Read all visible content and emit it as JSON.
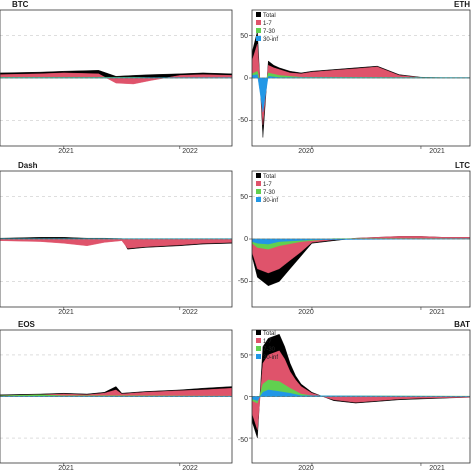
{
  "colors": {
    "Total": "#000000",
    "1-7": "#df536b",
    "7-30": "#61d04f",
    "30-inf": "#2297e6"
  },
  "chart_data": [
    {
      "type": "area",
      "title": "BTC",
      "ylim": [
        -80,
        80
      ],
      "y_ticks": [],
      "x_ticks": [
        {
          "label": "2021",
          "x": 2021.0
        },
        {
          "label": "2022",
          "x": 2022.0
        }
      ],
      "xlim": [
        2020.45,
        2022.45
      ],
      "legend": null,
      "series": [
        {
          "name": "Total",
          "x": [
            2020.45,
            2020.8,
            2021.0,
            2021.3,
            2021.45,
            2021.6,
            2021.75,
            2022.0,
            2022.2,
            2022.45
          ],
          "y": [
            6,
            7,
            8,
            9,
            2,
            3,
            4,
            5,
            6,
            5
          ]
        },
        {
          "name": "1-7",
          "x": [
            2020.45,
            2020.8,
            2021.0,
            2021.3,
            2021.45,
            2021.6,
            2021.75,
            2022.0,
            2022.2,
            2022.45
          ],
          "y": [
            4,
            5,
            6,
            5,
            -6,
            -7,
            -3,
            3,
            4,
            3
          ]
        },
        {
          "name": "7-30",
          "x": [
            2020.45,
            2020.8,
            2021.0,
            2021.3,
            2021.45,
            2021.6,
            2021.75,
            2022.0,
            2022.2,
            2022.45
          ],
          "y": [
            1,
            1,
            1,
            1,
            1,
            1,
            0.5,
            0.5,
            0.5,
            0.5
          ]
        },
        {
          "name": "30-inf",
          "x": [
            2020.45,
            2022.45
          ],
          "y": [
            0.3,
            0.3
          ]
        }
      ]
    },
    {
      "type": "area",
      "title": "ETH",
      "ylim": [
        -80,
        80
      ],
      "y_ticks": [
        {
          "label": "50",
          "v": 50
        },
        {
          "label": "0",
          "v": 0
        },
        {
          "label": "-50",
          "v": -50
        }
      ],
      "x_ticks": [
        {
          "label": "2020",
          "x": 2020.0
        },
        {
          "label": "2021",
          "x": 2021.0
        }
      ],
      "xlim": [
        2019.45,
        2021.45
      ],
      "legend": [
        "Total",
        "1-7",
        "7-30",
        "30-inf"
      ],
      "series": [
        {
          "name": "Total",
          "x": [
            2019.45,
            2019.5,
            2019.55,
            2019.6,
            2019.65,
            2019.7,
            2019.8,
            2019.9,
            2020.0,
            2020.2,
            2020.4,
            2020.6,
            2020.8,
            2021.0,
            2021.2,
            2021.45
          ],
          "y": [
            30,
            55,
            -70,
            20,
            15,
            12,
            8,
            6,
            8,
            10,
            12,
            14,
            4,
            1,
            0.5,
            0.5
          ]
        },
        {
          "name": "1-7",
          "x": [
            2019.45,
            2019.5,
            2019.55,
            2019.6,
            2019.65,
            2019.7,
            2019.8,
            2019.9,
            2020.0,
            2020.2,
            2020.4,
            2020.6,
            2020.8,
            2021.0,
            2021.2,
            2021.45
          ],
          "y": [
            20,
            40,
            -55,
            15,
            12,
            10,
            6,
            5,
            7,
            9,
            11,
            13,
            3,
            0.5,
            0.3,
            0.3
          ]
        },
        {
          "name": "7-30",
          "x": [
            2019.45,
            2019.5,
            2019.55,
            2019.6,
            2019.7,
            2019.9,
            2020.2,
            2021.45
          ],
          "y": [
            5,
            8,
            -15,
            6,
            3,
            1,
            1,
            0.5
          ]
        },
        {
          "name": "30-inf",
          "x": [
            2019.45,
            2019.5,
            2019.55,
            2019.6,
            2019.7,
            2021.45
          ],
          "y": [
            3,
            4,
            -40,
            2,
            0.5,
            0.2
          ]
        }
      ]
    },
    {
      "type": "area",
      "title": "Dash",
      "ylim": [
        -80,
        80
      ],
      "y_ticks": [],
      "x_ticks": [
        {
          "label": "2021",
          "x": 2021.0
        },
        {
          "label": "2022",
          "x": 2022.0
        }
      ],
      "xlim": [
        2020.45,
        2022.45
      ],
      "legend": null,
      "series": [
        {
          "name": "Total",
          "x": [
            2020.45,
            2020.8,
            2021.0,
            2021.2,
            2021.35,
            2021.5,
            2021.55,
            2021.7,
            2022.0,
            2022.2,
            2022.45
          ],
          "y": [
            1,
            2,
            2,
            1,
            1,
            0.5,
            -12,
            -10,
            -8,
            -6,
            -5
          ]
        },
        {
          "name": "1-7",
          "x": [
            2020.45,
            2020.8,
            2021.0,
            2021.2,
            2021.35,
            2021.5,
            2021.55,
            2021.7,
            2022.0,
            2022.2,
            2022.45
          ],
          "y": [
            -2,
            -3,
            -5,
            -8,
            -4,
            -2,
            -11,
            -9,
            -7,
            -5,
            -4
          ]
        },
        {
          "name": "7-30",
          "x": [
            2020.45,
            2022.45
          ],
          "y": [
            0.5,
            0.5
          ]
        },
        {
          "name": "30-inf",
          "x": [
            2020.45,
            2022.45
          ],
          "y": [
            0.3,
            0.3
          ]
        }
      ]
    },
    {
      "type": "area",
      "title": "LTC",
      "ylim": [
        -80,
        80
      ],
      "y_ticks": [
        {
          "label": "50",
          "v": 50
        },
        {
          "label": "0",
          "v": 0
        },
        {
          "label": "-50",
          "v": -50
        }
      ],
      "x_ticks": [
        {
          "label": "2020",
          "x": 2020.0
        },
        {
          "label": "2021",
          "x": 2021.0
        }
      ],
      "xlim": [
        2019.45,
        2021.45
      ],
      "legend": [
        "Total",
        "1-7",
        "7-30",
        "30-inf"
      ],
      "series": [
        {
          "name": "Total",
          "x": [
            2019.45,
            2019.5,
            2019.6,
            2019.7,
            2019.8,
            2019.9,
            2020.0,
            2020.2,
            2020.4,
            2020.6,
            2020.8,
            2021.0,
            2021.2,
            2021.45
          ],
          "y": [
            -20,
            -45,
            -55,
            -50,
            -35,
            -20,
            -5,
            -2,
            1,
            2,
            3,
            3,
            2,
            2
          ]
        },
        {
          "name": "1-7",
          "x": [
            2019.45,
            2019.5,
            2019.6,
            2019.7,
            2019.8,
            2019.9,
            2020.0,
            2020.2,
            2020.4,
            2020.6,
            2020.8,
            2021.0,
            2021.2,
            2021.45
          ],
          "y": [
            -15,
            -35,
            -40,
            -35,
            -25,
            -15,
            -4,
            -1,
            1,
            2,
            3,
            3,
            2,
            2
          ]
        },
        {
          "name": "7-30",
          "x": [
            2019.45,
            2019.5,
            2019.6,
            2019.7,
            2019.9,
            2020.2,
            2021.45
          ],
          "y": [
            -5,
            -10,
            -12,
            -8,
            -3,
            0.5,
            0.5
          ]
        },
        {
          "name": "30-inf",
          "x": [
            2019.45,
            2019.5,
            2019.6,
            2019.7,
            2020.0,
            2021.45
          ],
          "y": [
            -3,
            -5,
            -6,
            -3,
            -1,
            0.2
          ]
        }
      ]
    },
    {
      "type": "area",
      "title": "EOS",
      "ylim": [
        -80,
        80
      ],
      "y_ticks": [],
      "x_ticks": [
        {
          "label": "2021",
          "x": 2021.0
        },
        {
          "label": "2022",
          "x": 2022.0
        }
      ],
      "xlim": [
        2020.45,
        2022.45
      ],
      "legend": null,
      "series": [
        {
          "name": "Total",
          "x": [
            2020.45,
            2020.8,
            2021.0,
            2021.2,
            2021.35,
            2021.45,
            2021.5,
            2021.7,
            2022.0,
            2022.2,
            2022.45
          ],
          "y": [
            2,
            3,
            4,
            3,
            5,
            12,
            4,
            6,
            8,
            10,
            12
          ]
        },
        {
          "name": "1-7",
          "x": [
            2020.45,
            2020.8,
            2021.0,
            2021.2,
            2021.35,
            2021.45,
            2021.5,
            2021.7,
            2022.0,
            2022.2,
            2022.45
          ],
          "y": [
            1,
            2,
            3,
            2,
            4,
            8,
            3,
            5,
            7,
            8,
            10
          ]
        },
        {
          "name": "7-30",
          "x": [
            2020.45,
            2020.8,
            2021.0,
            2021.45,
            2022.45
          ],
          "y": [
            1,
            2,
            1,
            1,
            0.5
          ]
        },
        {
          "name": "30-inf",
          "x": [
            2020.45,
            2022.45
          ],
          "y": [
            0.3,
            0.3
          ]
        }
      ]
    },
    {
      "type": "area",
      "title": "BAT",
      "ylim": [
        -80,
        80
      ],
      "y_ticks": [
        {
          "label": "50",
          "v": 50
        },
        {
          "label": "0",
          "v": 0
        },
        {
          "label": "-50",
          "v": -50
        }
      ],
      "x_ticks": [
        {
          "label": "2020",
          "x": 2020.0
        },
        {
          "label": "2021",
          "x": 2021.0
        }
      ],
      "xlim": [
        2019.45,
        2021.45
      ],
      "legend": [
        "Total",
        "1-7",
        "7-30",
        "30-inf"
      ],
      "series": [
        {
          "name": "Total",
          "x": [
            2019.45,
            2019.5,
            2019.55,
            2019.6,
            2019.7,
            2019.75,
            2019.8,
            2019.85,
            2019.9,
            2020.0,
            2020.2,
            2020.4,
            2020.6,
            2020.8,
            2021.0,
            2021.2,
            2021.45
          ],
          "y": [
            -30,
            -50,
            60,
            70,
            75,
            60,
            40,
            25,
            15,
            5,
            -5,
            -8,
            -6,
            -4,
            -3,
            -2,
            -1
          ]
        },
        {
          "name": "1-7",
          "x": [
            2019.45,
            2019.5,
            2019.55,
            2019.6,
            2019.7,
            2019.75,
            2019.8,
            2019.85,
            2019.9,
            2020.0,
            2020.2,
            2020.4,
            2020.6,
            2020.8,
            2021.0,
            2021.2,
            2021.45
          ],
          "y": [
            -20,
            -40,
            40,
            50,
            55,
            45,
            30,
            20,
            12,
            4,
            -4,
            -7,
            -5,
            -3,
            -2,
            -1.5,
            -1
          ]
        },
        {
          "name": "7-30",
          "x": [
            2019.45,
            2019.5,
            2019.55,
            2019.6,
            2019.7,
            2019.8,
            2019.9,
            2020.0,
            2021.45
          ],
          "y": [
            -5,
            -8,
            15,
            20,
            18,
            10,
            3,
            1,
            0.5
          ]
        },
        {
          "name": "30-inf",
          "x": [
            2019.45,
            2019.5,
            2019.55,
            2019.6,
            2019.7,
            2019.8,
            2019.9,
            2021.45
          ],
          "y": [
            -3,
            -5,
            5,
            8,
            6,
            4,
            1,
            0.2
          ]
        }
      ]
    }
  ]
}
